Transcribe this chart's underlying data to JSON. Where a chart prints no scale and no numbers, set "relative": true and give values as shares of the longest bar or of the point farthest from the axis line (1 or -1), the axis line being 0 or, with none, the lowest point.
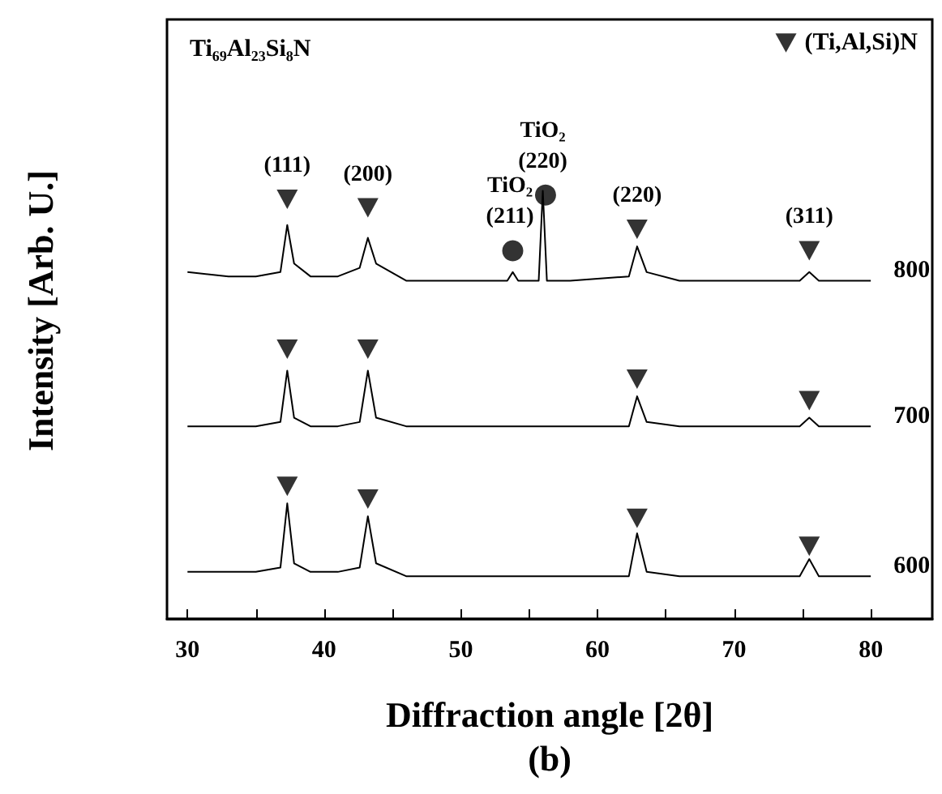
{
  "chart_data": {
    "type": "line",
    "title": "Ti₆₉Al₂₃Si₈N",
    "xlabel": "Diffraction angle [2θ]",
    "ylabel": "Intensity [Arb. U.]",
    "relative": true,
    "grid": false,
    "legend": "top right",
    "marker": "none",
    "x": [
      30,
      33,
      35,
      36.8,
      37.3,
      37.8,
      39,
      41,
      42.6,
      43.2,
      43.8,
      46,
      50,
      53.4,
      53.8,
      54.2,
      55.7,
      56,
      56.3,
      58,
      62.3,
      62.9,
      63.6,
      66,
      70,
      74.8,
      75.5,
      76.2,
      80
    ],
    "xlim": [
      28.5,
      84.5
    ],
    "xticks": [
      30,
      {
        "value": 35,
        "label": null
      },
      40,
      {
        "value": 45,
        "label": null
      },
      50,
      {
        "value": 55,
        "label": null
      },
      60,
      {
        "value": 65,
        "label": null
      },
      70,
      {
        "value": 75,
        "label": null
      },
      80
    ],
    "series": [
      {
        "name": "800",
        "color": "#000000",
        "values": [
          0.81,
          0.8,
          0.8,
          0.81,
          0.92,
          0.83,
          0.8,
          0.8,
          0.82,
          0.89,
          0.83,
          0.79,
          0.79,
          0.79,
          0.81,
          0.79,
          0.79,
          1,
          0.79,
          0.79,
          0.8,
          0.87,
          0.81,
          0.79,
          0.79,
          0.79,
          0.81,
          0.79,
          0.79
        ]
      },
      {
        "name": "700",
        "color": "#000000",
        "values": [
          0.45,
          0.45,
          0.45,
          0.46,
          0.58,
          0.47,
          0.45,
          0.45,
          0.46,
          0.58,
          0.47,
          0.45,
          0.45,
          0.45,
          0.45,
          0.45,
          0.45,
          0.45,
          0.45,
          0.45,
          0.45,
          0.52,
          0.46,
          0.45,
          0.45,
          0.45,
          0.47,
          0.45,
          0.45
        ]
      },
      {
        "name": "600",
        "color": "#000000",
        "values": [
          0.11,
          0.11,
          0.11,
          0.12,
          0.27,
          0.13,
          0.11,
          0.11,
          0.12,
          0.24,
          0.13,
          0.1,
          0.1,
          0.1,
          0.1,
          0.1,
          0.1,
          0.1,
          0.1,
          0.1,
          0.1,
          0.2,
          0.11,
          0.1,
          0.1,
          0.1,
          0.14,
          0.1,
          0.1
        ]
      },
      {
        "type": "scatter",
        "name": "(Ti,Al,Si)N",
        "color": "#000000",
        "marker": "triangle",
        "x": [
          37.3,
          43.2,
          62.9,
          75.5,
          37.3,
          43.2,
          62.9,
          75.5,
          37.3,
          43.2,
          62.9,
          75.5
        ],
        "values": [
          0.98,
          0.96,
          0.91,
          0.86,
          0.63,
          0.63,
          0.56,
          0.51,
          0.31,
          0.28,
          0.235,
          0.17
        ]
      },
      {
        "type": "scatter",
        "color": "#000000",
        "marker": "circle",
        "x": [
          53.8,
          56.2
        ],
        "values": [
          0.86,
          0.99
        ]
      }
    ],
    "annotations": [
      {
        "text": "(111)",
        "x": 37.3,
        "y": 0.98
      },
      {
        "text": "(200)",
        "x": 43.2,
        "y": 0.96
      },
      {
        "text": "TiO₂\n(211)",
        "x": 53.6,
        "y": 0.86
      },
      {
        "text": "TiO₂\n(220)",
        "x": 56.0,
        "y": 0.99
      },
      {
        "text": "(220)",
        "x": 62.9,
        "y": 0.91
      },
      {
        "text": "(311)",
        "x": 75.5,
        "y": 0.86
      },
      "(b)"
    ]
  }
}
